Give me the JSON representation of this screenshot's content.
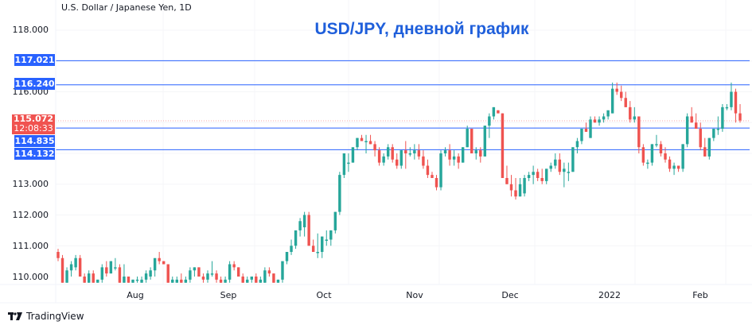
{
  "header": {
    "symbol_description": "U.S. Dollar / Japanese Yen, 1D",
    "title": "USD/JPY, дневной график"
  },
  "price_axis": {
    "ticks": [
      "118.000",
      "116.000",
      "113.000",
      "112.000",
      "111.000",
      "110.000"
    ],
    "levels": [
      {
        "value": "117.021",
        "color": "#2962ff"
      },
      {
        "value": "116.240",
        "color": "#2962ff"
      },
      {
        "value": "114.835",
        "color": "#2962ff"
      },
      {
        "value": "114.132",
        "color": "#2962ff"
      }
    ],
    "last_price": {
      "value": "115.072",
      "countdown": "12:08:33",
      "color": "#f05350"
    }
  },
  "time_axis": {
    "labels": [
      "Aug",
      "Sep",
      "Oct",
      "Nov",
      "Dec",
      "2022",
      "Feb"
    ]
  },
  "footer": {
    "brand": "TradingView"
  },
  "colors": {
    "up": "#26a69a",
    "down": "#ef5350",
    "level_line": "#2962ff",
    "title": "#1f5fdb"
  },
  "chart_data": {
    "type": "candlestick",
    "title": "USD/JPY, дневной график",
    "subtitle": "U.S. Dollar / Japanese Yen, 1D",
    "xlabel": "",
    "ylabel": "",
    "ylim": [
      109.8,
      118.3
    ],
    "grid": true,
    "x_tick_labels": [
      "Aug",
      "Sep",
      "Oct",
      "Nov",
      "Dec",
      "2022",
      "Feb"
    ],
    "y_tick_labels": [
      "110.000",
      "111.000",
      "112.000",
      "113.000",
      "116.000",
      "118.000"
    ],
    "horizontal_levels": [
      117.021,
      116.24,
      114.835,
      114.132
    ],
    "last_price": 115.072,
    "candles": [
      {
        "o": 110.8,
        "h": 110.9,
        "l": 110.5,
        "c": 110.6
      },
      {
        "o": 110.6,
        "h": 110.7,
        "l": 109.8,
        "c": 109.8
      },
      {
        "o": 109.8,
        "h": 110.3,
        "l": 109.8,
        "c": 110.2
      },
      {
        "o": 110.2,
        "h": 110.5,
        "l": 110.0,
        "c": 110.4
      },
      {
        "o": 110.3,
        "h": 110.7,
        "l": 110.2,
        "c": 110.6
      },
      {
        "o": 110.6,
        "h": 110.7,
        "l": 110.0,
        "c": 110.0
      },
      {
        "o": 110.0,
        "h": 110.1,
        "l": 109.8,
        "c": 109.8
      },
      {
        "o": 109.8,
        "h": 110.2,
        "l": 109.8,
        "c": 110.1
      },
      {
        "o": 110.1,
        "h": 110.2,
        "l": 109.8,
        "c": 109.8
      },
      {
        "o": 109.8,
        "h": 109.9,
        "l": 109.8,
        "c": 109.9
      },
      {
        "o": 109.9,
        "h": 110.4,
        "l": 109.8,
        "c": 110.3
      },
      {
        "o": 110.3,
        "h": 110.5,
        "l": 110.0,
        "c": 110.1
      },
      {
        "o": 110.1,
        "h": 110.5,
        "l": 110.1,
        "c": 110.5
      },
      {
        "o": 110.3,
        "h": 110.6,
        "l": 110.2,
        "c": 110.3
      },
      {
        "o": 110.3,
        "h": 110.4,
        "l": 109.8,
        "c": 109.8
      },
      {
        "o": 109.8,
        "h": 110.4,
        "l": 109.8,
        "c": 110.0
      },
      {
        "o": 110.0,
        "h": 110.0,
        "l": 109.8,
        "c": 109.8
      },
      {
        "o": 109.8,
        "h": 109.9,
        "l": 109.8,
        "c": 109.9
      },
      {
        "o": 109.9,
        "h": 110.0,
        "l": 109.8,
        "c": 109.9
      },
      {
        "o": 109.8,
        "h": 110.0,
        "l": 109.8,
        "c": 109.9
      },
      {
        "o": 109.9,
        "h": 110.2,
        "l": 109.8,
        "c": 110.1
      },
      {
        "o": 110.0,
        "h": 110.3,
        "l": 109.9,
        "c": 110.2
      },
      {
        "o": 110.2,
        "h": 110.3,
        "l": 110.0,
        "c": 110.6
      },
      {
        "o": 110.6,
        "h": 110.8,
        "l": 110.4,
        "c": 110.5
      },
      {
        "o": 110.5,
        "h": 110.5,
        "l": 110.4,
        "c": 110.4
      },
      {
        "o": 110.4,
        "h": 110.4,
        "l": 109.8,
        "c": 109.8
      },
      {
        "o": 109.8,
        "h": 110.0,
        "l": 109.8,
        "c": 109.9
      },
      {
        "o": 109.8,
        "h": 110.0,
        "l": 109.8,
        "c": 109.9
      },
      {
        "o": 109.9,
        "h": 110.1,
        "l": 109.8,
        "c": 109.8
      },
      {
        "o": 109.8,
        "h": 110.0,
        "l": 109.8,
        "c": 109.9
      },
      {
        "o": 109.9,
        "h": 110.3,
        "l": 109.8,
        "c": 110.2
      },
      {
        "o": 110.2,
        "h": 110.3,
        "l": 110.0,
        "c": 110.3
      },
      {
        "o": 110.3,
        "h": 110.3,
        "l": 110.0,
        "c": 110.0
      },
      {
        "o": 110.0,
        "h": 110.1,
        "l": 109.8,
        "c": 109.9
      },
      {
        "o": 109.9,
        "h": 110.2,
        "l": 109.8,
        "c": 110.1
      },
      {
        "o": 110.1,
        "h": 110.5,
        "l": 110.0,
        "c": 110.1
      },
      {
        "o": 110.1,
        "h": 110.2,
        "l": 109.8,
        "c": 109.9
      },
      {
        "o": 109.9,
        "h": 110.0,
        "l": 109.8,
        "c": 109.8
      },
      {
        "o": 109.8,
        "h": 110.0,
        "l": 109.8,
        "c": 109.9
      },
      {
        "o": 109.9,
        "h": 110.5,
        "l": 109.8,
        "c": 110.4
      },
      {
        "o": 110.4,
        "h": 110.5,
        "l": 110.2,
        "c": 110.3
      },
      {
        "o": 110.3,
        "h": 110.3,
        "l": 110.0,
        "c": 110.0
      },
      {
        "o": 110.0,
        "h": 110.1,
        "l": 109.8,
        "c": 109.8
      },
      {
        "o": 109.8,
        "h": 110.0,
        "l": 109.8,
        "c": 109.9
      },
      {
        "o": 109.9,
        "h": 110.0,
        "l": 109.8,
        "c": 110.0
      },
      {
        "o": 110.0,
        "h": 110.1,
        "l": 109.8,
        "c": 109.8
      },
      {
        "o": 109.8,
        "h": 110.0,
        "l": 109.8,
        "c": 109.9
      },
      {
        "o": 109.8,
        "h": 110.3,
        "l": 109.8,
        "c": 110.2
      },
      {
        "o": 110.2,
        "h": 110.3,
        "l": 110.0,
        "c": 110.1
      },
      {
        "o": 110.1,
        "h": 110.1,
        "l": 109.8,
        "c": 109.8
      },
      {
        "o": 109.8,
        "h": 109.9,
        "l": 109.8,
        "c": 109.9
      },
      {
        "o": 109.9,
        "h": 110.3,
        "l": 109.8,
        "c": 110.5
      },
      {
        "o": 110.5,
        "h": 110.8,
        "l": 110.4,
        "c": 110.8
      },
      {
        "o": 110.8,
        "h": 111.2,
        "l": 110.7,
        "c": 111.0
      },
      {
        "o": 111.0,
        "h": 111.4,
        "l": 110.9,
        "c": 111.5
      },
      {
        "o": 111.5,
        "h": 111.9,
        "l": 111.3,
        "c": 111.8
      },
      {
        "o": 111.6,
        "h": 112.1,
        "l": 111.3,
        "c": 112.0
      },
      {
        "o": 112.0,
        "h": 112.1,
        "l": 111.0,
        "c": 111.0
      },
      {
        "o": 111.0,
        "h": 111.2,
        "l": 110.8,
        "c": 110.8
      },
      {
        "o": 110.8,
        "h": 111.4,
        "l": 110.6,
        "c": 110.8
      },
      {
        "o": 110.8,
        "h": 111.3,
        "l": 110.6,
        "c": 111.3
      },
      {
        "o": 111.2,
        "h": 111.5,
        "l": 111.0,
        "c": 111.2
      },
      {
        "o": 111.2,
        "h": 111.5,
        "l": 111.0,
        "c": 111.5
      },
      {
        "o": 111.5,
        "h": 112.1,
        "l": 111.4,
        "c": 112.1
      },
      {
        "o": 112.1,
        "h": 113.4,
        "l": 112.0,
        "c": 113.3
      },
      {
        "o": 113.3,
        "h": 114.0,
        "l": 113.2,
        "c": 114.0
      },
      {
        "o": 113.7,
        "h": 114.0,
        "l": 113.4,
        "c": 113.7
      },
      {
        "o": 113.7,
        "h": 114.1,
        "l": 113.7,
        "c": 114.2
      },
      {
        "o": 114.2,
        "h": 114.5,
        "l": 114.1,
        "c": 114.5
      },
      {
        "o": 114.5,
        "h": 114.6,
        "l": 114.4,
        "c": 114.4
      },
      {
        "o": 114.4,
        "h": 114.6,
        "l": 114.0,
        "c": 114.4
      },
      {
        "o": 114.4,
        "h": 114.6,
        "l": 114.3,
        "c": 114.3
      },
      {
        "o": 114.3,
        "h": 114.4,
        "l": 113.9,
        "c": 114.1
      },
      {
        "o": 114.1,
        "h": 114.2,
        "l": 113.6,
        "c": 113.7
      },
      {
        "o": 113.7,
        "h": 114.0,
        "l": 113.6,
        "c": 113.9
      },
      {
        "o": 113.9,
        "h": 114.3,
        "l": 113.8,
        "c": 114.2
      },
      {
        "o": 114.2,
        "h": 114.3,
        "l": 113.7,
        "c": 113.8
      },
      {
        "o": 113.8,
        "h": 114.0,
        "l": 113.5,
        "c": 113.6
      },
      {
        "o": 113.6,
        "h": 114.1,
        "l": 113.5,
        "c": 114.1
      },
      {
        "o": 114.1,
        "h": 114.4,
        "l": 113.5,
        "c": 114.0
      },
      {
        "o": 114.0,
        "h": 114.2,
        "l": 113.9,
        "c": 114.0
      },
      {
        "o": 114.0,
        "h": 114.3,
        "l": 113.8,
        "c": 114.1
      },
      {
        "o": 114.1,
        "h": 114.3,
        "l": 113.8,
        "c": 113.9
      },
      {
        "o": 113.9,
        "h": 114.1,
        "l": 113.5,
        "c": 113.6
      },
      {
        "o": 113.6,
        "h": 113.8,
        "l": 113.2,
        "c": 113.3
      },
      {
        "o": 113.3,
        "h": 113.4,
        "l": 113.2,
        "c": 113.2
      },
      {
        "o": 113.2,
        "h": 113.3,
        "l": 112.8,
        "c": 112.9
      },
      {
        "o": 112.9,
        "h": 114.1,
        "l": 112.8,
        "c": 114.0
      },
      {
        "o": 114.0,
        "h": 114.2,
        "l": 113.9,
        "c": 114.1
      },
      {
        "o": 114.1,
        "h": 114.3,
        "l": 113.6,
        "c": 113.8
      },
      {
        "o": 113.8,
        "h": 114.1,
        "l": 113.6,
        "c": 113.9
      },
      {
        "o": 113.9,
        "h": 114.0,
        "l": 113.5,
        "c": 113.7
      },
      {
        "o": 113.7,
        "h": 114.2,
        "l": 113.7,
        "c": 114.2
      },
      {
        "o": 114.2,
        "h": 114.9,
        "l": 114.2,
        "c": 114.8
      },
      {
        "o": 114.8,
        "h": 114.8,
        "l": 114.0,
        "c": 114.0
      },
      {
        "o": 114.0,
        "h": 114.2,
        "l": 113.8,
        "c": 114.1
      },
      {
        "o": 114.1,
        "h": 114.2,
        "l": 113.7,
        "c": 113.9
      },
      {
        "o": 113.9,
        "h": 114.9,
        "l": 113.9,
        "c": 114.9
      },
      {
        "o": 114.9,
        "h": 115.3,
        "l": 114.5,
        "c": 115.2
      },
      {
        "o": 115.2,
        "h": 115.5,
        "l": 115.1,
        "c": 115.5
      },
      {
        "o": 115.4,
        "h": 115.4,
        "l": 115.3,
        "c": 115.3
      },
      {
        "o": 115.3,
        "h": 115.3,
        "l": 113.2,
        "c": 113.2
      },
      {
        "o": 113.2,
        "h": 113.6,
        "l": 113.0,
        "c": 113.0
      },
      {
        "o": 113.0,
        "h": 113.3,
        "l": 112.6,
        "c": 112.8
      },
      {
        "o": 112.8,
        "h": 113.2,
        "l": 112.5,
        "c": 112.6
      },
      {
        "o": 112.6,
        "h": 113.2,
        "l": 112.6,
        "c": 113.0
      },
      {
        "o": 112.7,
        "h": 113.3,
        "l": 112.6,
        "c": 113.2
      },
      {
        "o": 113.2,
        "h": 113.4,
        "l": 113.1,
        "c": 113.3
      },
      {
        "o": 113.3,
        "h": 113.6,
        "l": 113.0,
        "c": 113.4
      },
      {
        "o": 113.4,
        "h": 113.5,
        "l": 113.1,
        "c": 113.2
      },
      {
        "o": 113.2,
        "h": 113.5,
        "l": 113.0,
        "c": 113.1
      },
      {
        "o": 113.1,
        "h": 113.5,
        "l": 113.0,
        "c": 113.5
      },
      {
        "o": 113.5,
        "h": 113.7,
        "l": 113.4,
        "c": 113.6
      },
      {
        "o": 113.6,
        "h": 114.0,
        "l": 113.5,
        "c": 113.8
      },
      {
        "o": 113.8,
        "h": 114.0,
        "l": 113.3,
        "c": 113.4
      },
      {
        "o": 113.4,
        "h": 113.7,
        "l": 112.9,
        "c": 113.5
      },
      {
        "o": 113.4,
        "h": 113.7,
        "l": 113.1,
        "c": 113.4
      },
      {
        "o": 113.4,
        "h": 114.2,
        "l": 113.4,
        "c": 114.2
      },
      {
        "o": 114.2,
        "h": 114.5,
        "l": 114.0,
        "c": 114.4
      },
      {
        "o": 114.4,
        "h": 114.8,
        "l": 114.3,
        "c": 114.8
      },
      {
        "o": 114.8,
        "h": 115.0,
        "l": 114.7,
        "c": 114.7
      },
      {
        "o": 114.5,
        "h": 115.2,
        "l": 114.5,
        "c": 115.1
      },
      {
        "o": 115.1,
        "h": 115.2,
        "l": 115.0,
        "c": 115.0
      },
      {
        "o": 115.0,
        "h": 115.2,
        "l": 114.9,
        "c": 115.1
      },
      {
        "o": 115.1,
        "h": 115.3,
        "l": 115.0,
        "c": 115.2
      },
      {
        "o": 115.2,
        "h": 115.3,
        "l": 115.1,
        "c": 115.4
      },
      {
        "o": 115.3,
        "h": 116.3,
        "l": 115.3,
        "c": 116.1
      },
      {
        "o": 116.1,
        "h": 116.3,
        "l": 115.9,
        "c": 116.0
      },
      {
        "o": 116.0,
        "h": 116.2,
        "l": 115.7,
        "c": 115.8
      },
      {
        "o": 115.8,
        "h": 116.0,
        "l": 115.5,
        "c": 115.5
      },
      {
        "o": 115.5,
        "h": 115.7,
        "l": 115.0,
        "c": 115.1
      },
      {
        "o": 115.1,
        "h": 115.5,
        "l": 115.0,
        "c": 115.2
      },
      {
        "o": 115.2,
        "h": 115.2,
        "l": 114.0,
        "c": 114.2
      },
      {
        "o": 114.2,
        "h": 114.3,
        "l": 113.6,
        "c": 113.7
      },
      {
        "o": 113.7,
        "h": 113.8,
        "l": 113.5,
        "c": 113.7
      },
      {
        "o": 113.7,
        "h": 114.3,
        "l": 113.6,
        "c": 114.3
      },
      {
        "o": 114.3,
        "h": 114.6,
        "l": 114.2,
        "c": 114.3
      },
      {
        "o": 114.3,
        "h": 114.4,
        "l": 113.9,
        "c": 114.0
      },
      {
        "o": 114.0,
        "h": 114.2,
        "l": 113.7,
        "c": 113.8
      },
      {
        "o": 113.8,
        "h": 113.9,
        "l": 113.4,
        "c": 113.5
      },
      {
        "o": 113.5,
        "h": 113.7,
        "l": 113.3,
        "c": 113.6
      },
      {
        "o": 113.6,
        "h": 113.6,
        "l": 113.4,
        "c": 113.5
      },
      {
        "o": 113.5,
        "h": 114.3,
        "l": 113.4,
        "c": 114.3
      },
      {
        "o": 114.3,
        "h": 115.3,
        "l": 114.2,
        "c": 115.2
      },
      {
        "o": 115.2,
        "h": 115.5,
        "l": 115.0,
        "c": 115.0
      },
      {
        "o": 115.0,
        "h": 115.3,
        "l": 114.8,
        "c": 114.8
      },
      {
        "o": 114.8,
        "h": 115.0,
        "l": 114.1,
        "c": 114.2
      },
      {
        "o": 114.2,
        "h": 114.5,
        "l": 113.9,
        "c": 113.9
      },
      {
        "o": 113.9,
        "h": 114.5,
        "l": 113.8,
        "c": 114.5
      },
      {
        "o": 114.5,
        "h": 114.8,
        "l": 114.4,
        "c": 114.8
      },
      {
        "o": 114.8,
        "h": 115.2,
        "l": 114.6,
        "c": 114.8
      },
      {
        "o": 114.8,
        "h": 115.6,
        "l": 114.7,
        "c": 115.5
      },
      {
        "o": 115.5,
        "h": 115.6,
        "l": 115.4,
        "c": 115.5
      },
      {
        "o": 115.5,
        "h": 116.3,
        "l": 115.4,
        "c": 116.0
      },
      {
        "o": 116.0,
        "h": 116.1,
        "l": 115.0,
        "c": 115.3
      },
      {
        "o": 115.3,
        "h": 115.6,
        "l": 115.0,
        "c": 115.07
      }
    ]
  }
}
